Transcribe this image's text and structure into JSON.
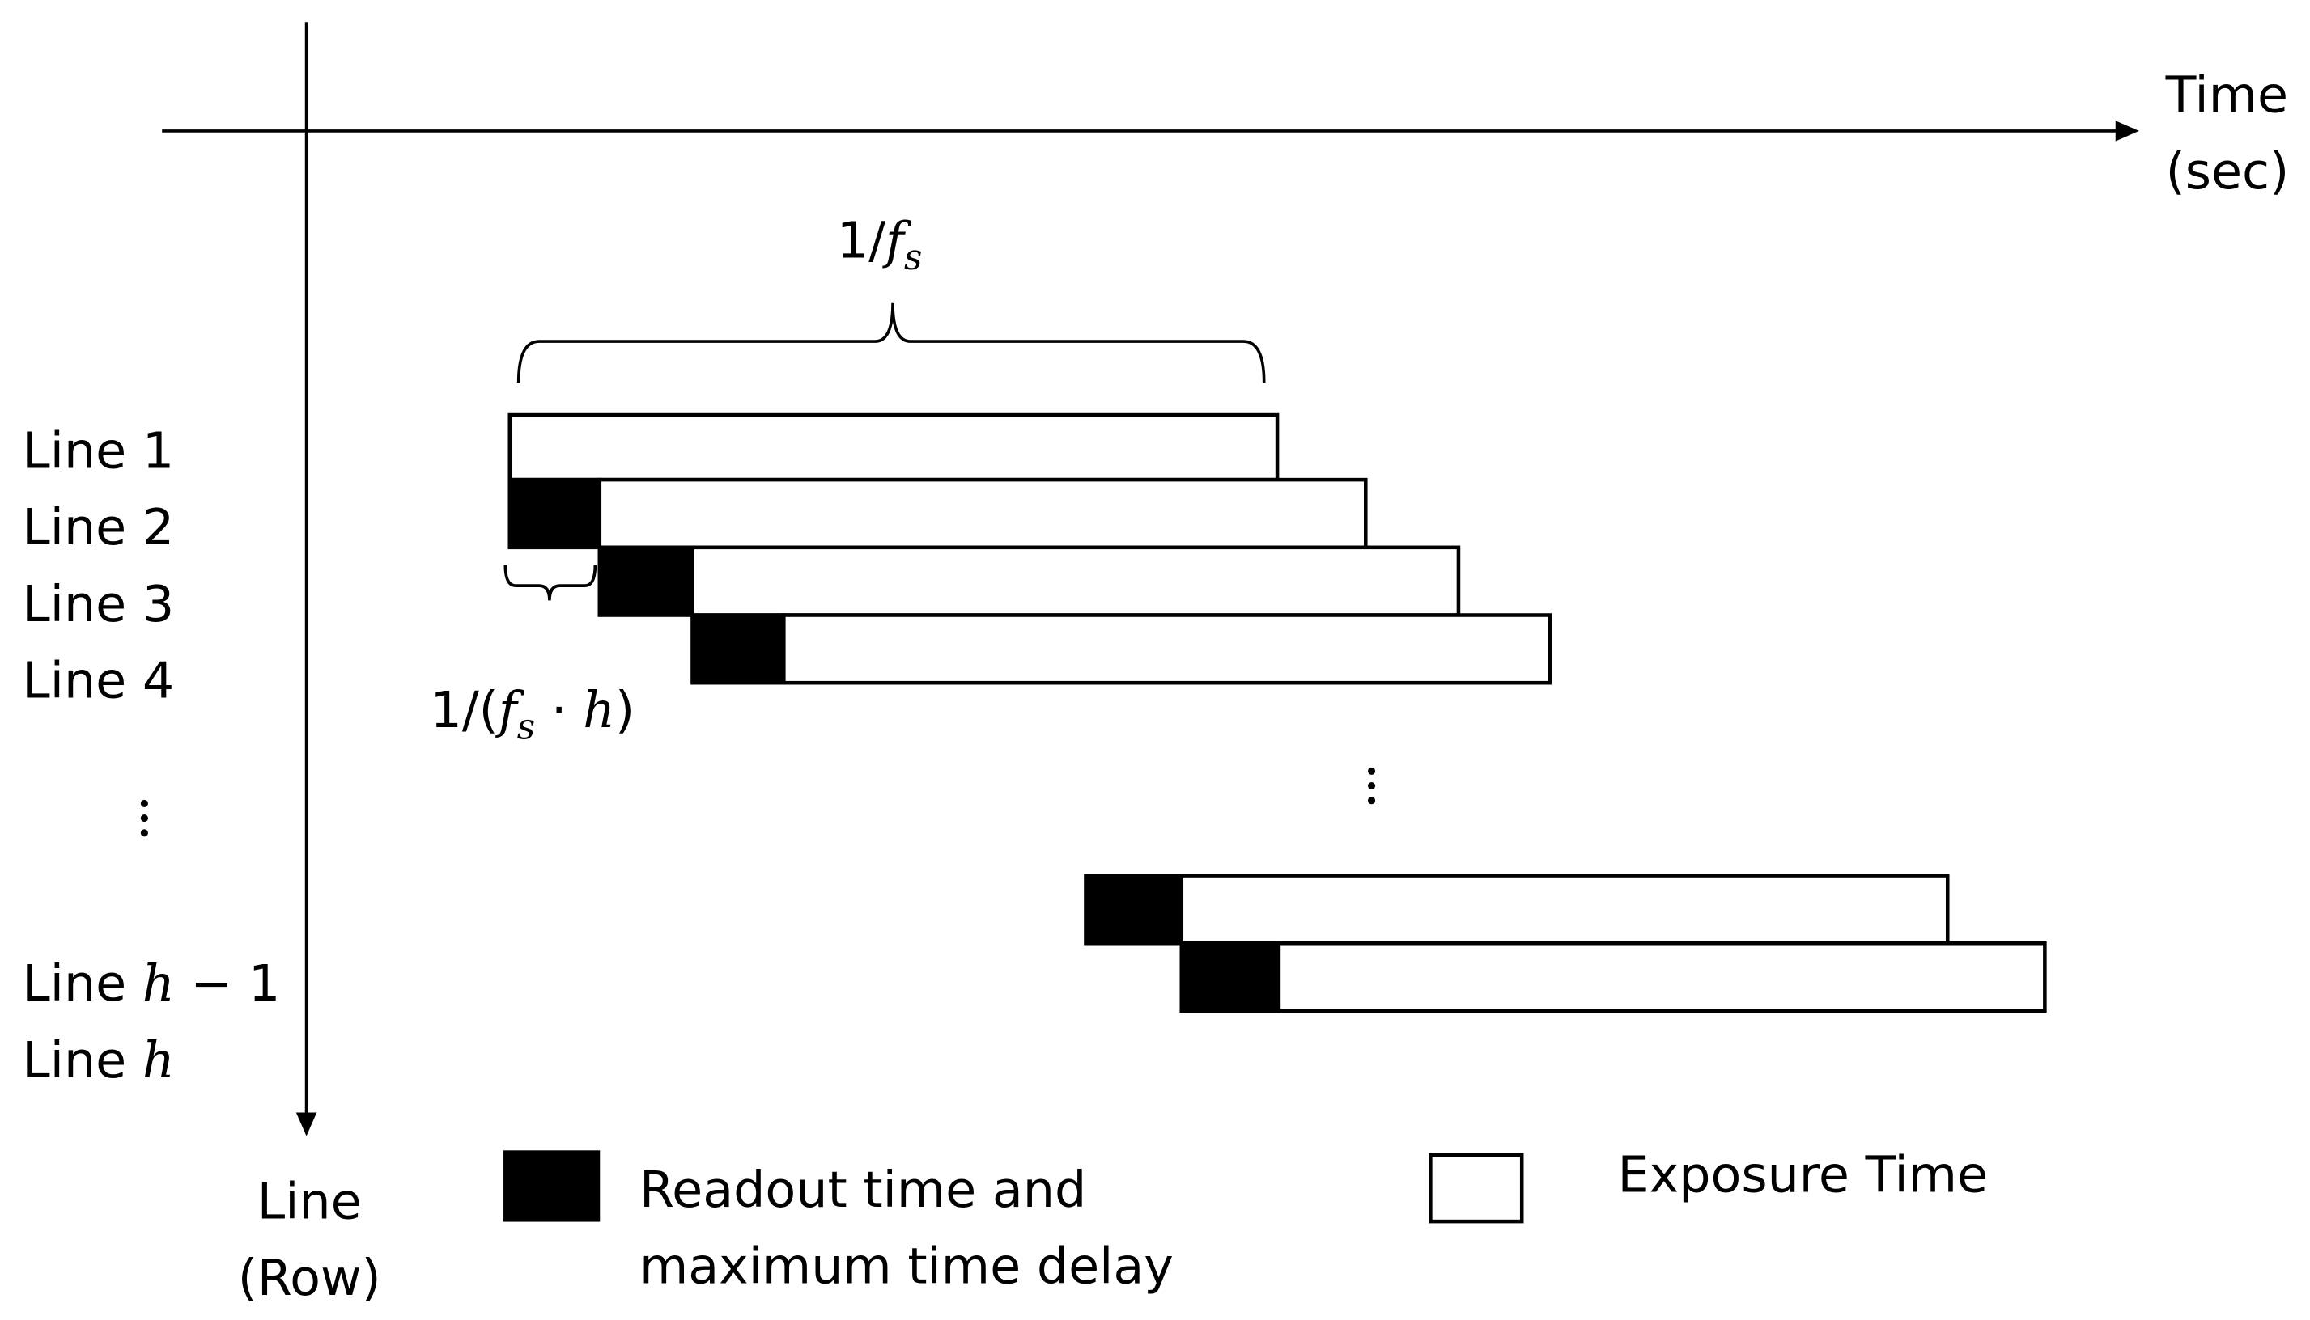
{
  "axes": {
    "time": [
      "Time",
      "(sec)"
    ],
    "line": [
      "Line",
      "(Row)"
    ]
  },
  "rows": [
    {
      "prefix": "Line",
      "index": "1"
    },
    {
      "prefix": "Line",
      "index": "2"
    },
    {
      "prefix": "Line",
      "index": "3"
    },
    {
      "prefix": "Line",
      "index": "4"
    },
    {
      "prefix": "Line",
      "math": "h",
      "suffix": " − 1"
    },
    {
      "prefix": "Line",
      "math": "h"
    }
  ],
  "annotations": {
    "frame_period": {
      "lead": "1/",
      "var": "f",
      "sub": "s"
    },
    "line_delay": {
      "lead": "1/(",
      "var": "f",
      "sub": "s",
      "mid": " · ",
      "var2": "h",
      "tail": ")"
    }
  },
  "legend": {
    "readout": [
      "Readout time and",
      "maximum time delay"
    ],
    "exposure": "Exposure Time"
  }
}
